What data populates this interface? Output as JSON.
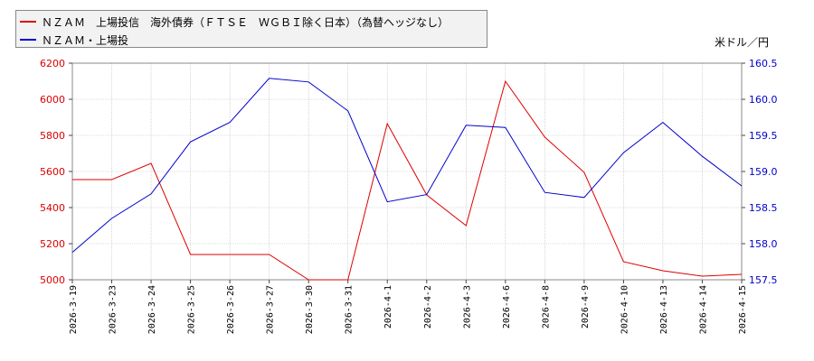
{
  "colors": {
    "series1": "#dd0000",
    "series2": "#0000cc",
    "axis_left_text": "#dd0000",
    "axis_right_text": "#0000cc",
    "grid": "#bbbbbb"
  },
  "legend": {
    "series1_label": "ＮＺＡＭ　上場投信　海外債券（ＦＴＳＥ　ＷＧＢＩ除く日本）（為替ヘッジなし）",
    "series2_label": "ＮＺＡＭ・上場投"
  },
  "units": {
    "left": "",
    "right": "米ドル／円"
  },
  "chart_data": {
    "type": "line",
    "categories": [
      "2026-3-19",
      "2026-3-23",
      "2026-3-24",
      "2026-3-25",
      "2026-3-26",
      "2026-3-27",
      "2026-3-30",
      "2026-3-31",
      "2026-4-1",
      "2026-4-2",
      "2026-4-3",
      "2026-4-6",
      "2026-4-8",
      "2026-4-9",
      "2026-4-10",
      "2026-4-13",
      "2026-4-14",
      "2026-4-15"
    ],
    "y_left": {
      "min": 5000,
      "max": 6200,
      "ticks": [
        "5000",
        "5200",
        "5400",
        "5600",
        "5800",
        "6000",
        "6200"
      ]
    },
    "y_right": {
      "min": 157.5,
      "max": 160.5,
      "ticks": [
        "157.5",
        "158.0",
        "158.5",
        "159.0",
        "159.5",
        "160.0",
        "160.5"
      ]
    },
    "grid": true,
    "series": [
      {
        "name": "ＮＺＡＭ　上場投信　海外債券（ＦＴＳＥ　ＷＧＢＩ除く日本）（為替ヘッジなし）",
        "axis": "left",
        "values": [
          5555,
          5555,
          5645,
          5140,
          5140,
          5140,
          5000,
          5000,
          5865,
          5470,
          5300,
          6100,
          5790,
          5595,
          5100,
          5050,
          5020,
          5030
        ]
      },
      {
        "name": "米ドル／円",
        "axis": "right",
        "values": [
          157.88,
          158.35,
          158.69,
          159.41,
          159.68,
          160.29,
          160.24,
          159.84,
          158.58,
          158.68,
          159.64,
          159.61,
          158.71,
          158.64,
          159.26,
          159.68,
          159.21,
          158.8
        ]
      }
    ]
  }
}
